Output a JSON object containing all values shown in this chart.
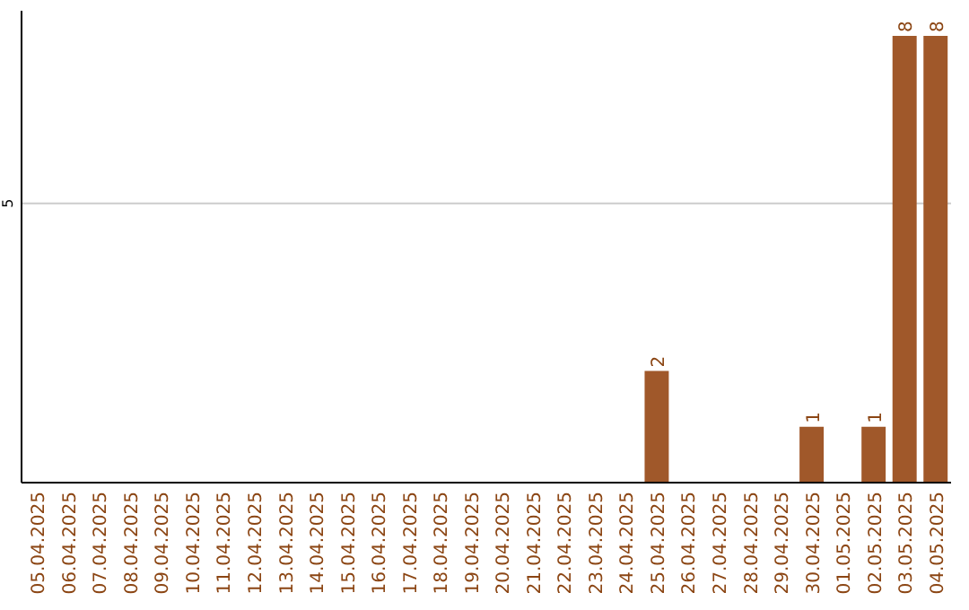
{
  "chart_data": {
    "type": "bar",
    "categories": [
      "05.04.2025",
      "06.04.2025",
      "07.04.2025",
      "08.04.2025",
      "09.04.2025",
      "10.04.2025",
      "11.04.2025",
      "12.04.2025",
      "13.04.2025",
      "14.04.2025",
      "15.04.2025",
      "16.04.2025",
      "17.04.2025",
      "18.04.2025",
      "19.04.2025",
      "20.04.2025",
      "21.04.2025",
      "22.04.2025",
      "23.04.2025",
      "24.04.2025",
      "25.04.2025",
      "26.04.2025",
      "27.04.2025",
      "28.04.2025",
      "29.04.2025",
      "30.04.2025",
      "01.05.2025",
      "02.05.2025",
      "03.05.2025",
      "04.05.2025"
    ],
    "values": [
      null,
      null,
      null,
      null,
      null,
      null,
      null,
      null,
      null,
      null,
      null,
      null,
      null,
      null,
      null,
      null,
      null,
      null,
      null,
      null,
      2,
      null,
      null,
      null,
      null,
      1,
      null,
      1,
      8,
      8
    ],
    "data_labels": true,
    "color": "#a0582a",
    "ylim": [
      0,
      8
    ],
    "yticks": [
      5
    ],
    "grid": "y"
  }
}
